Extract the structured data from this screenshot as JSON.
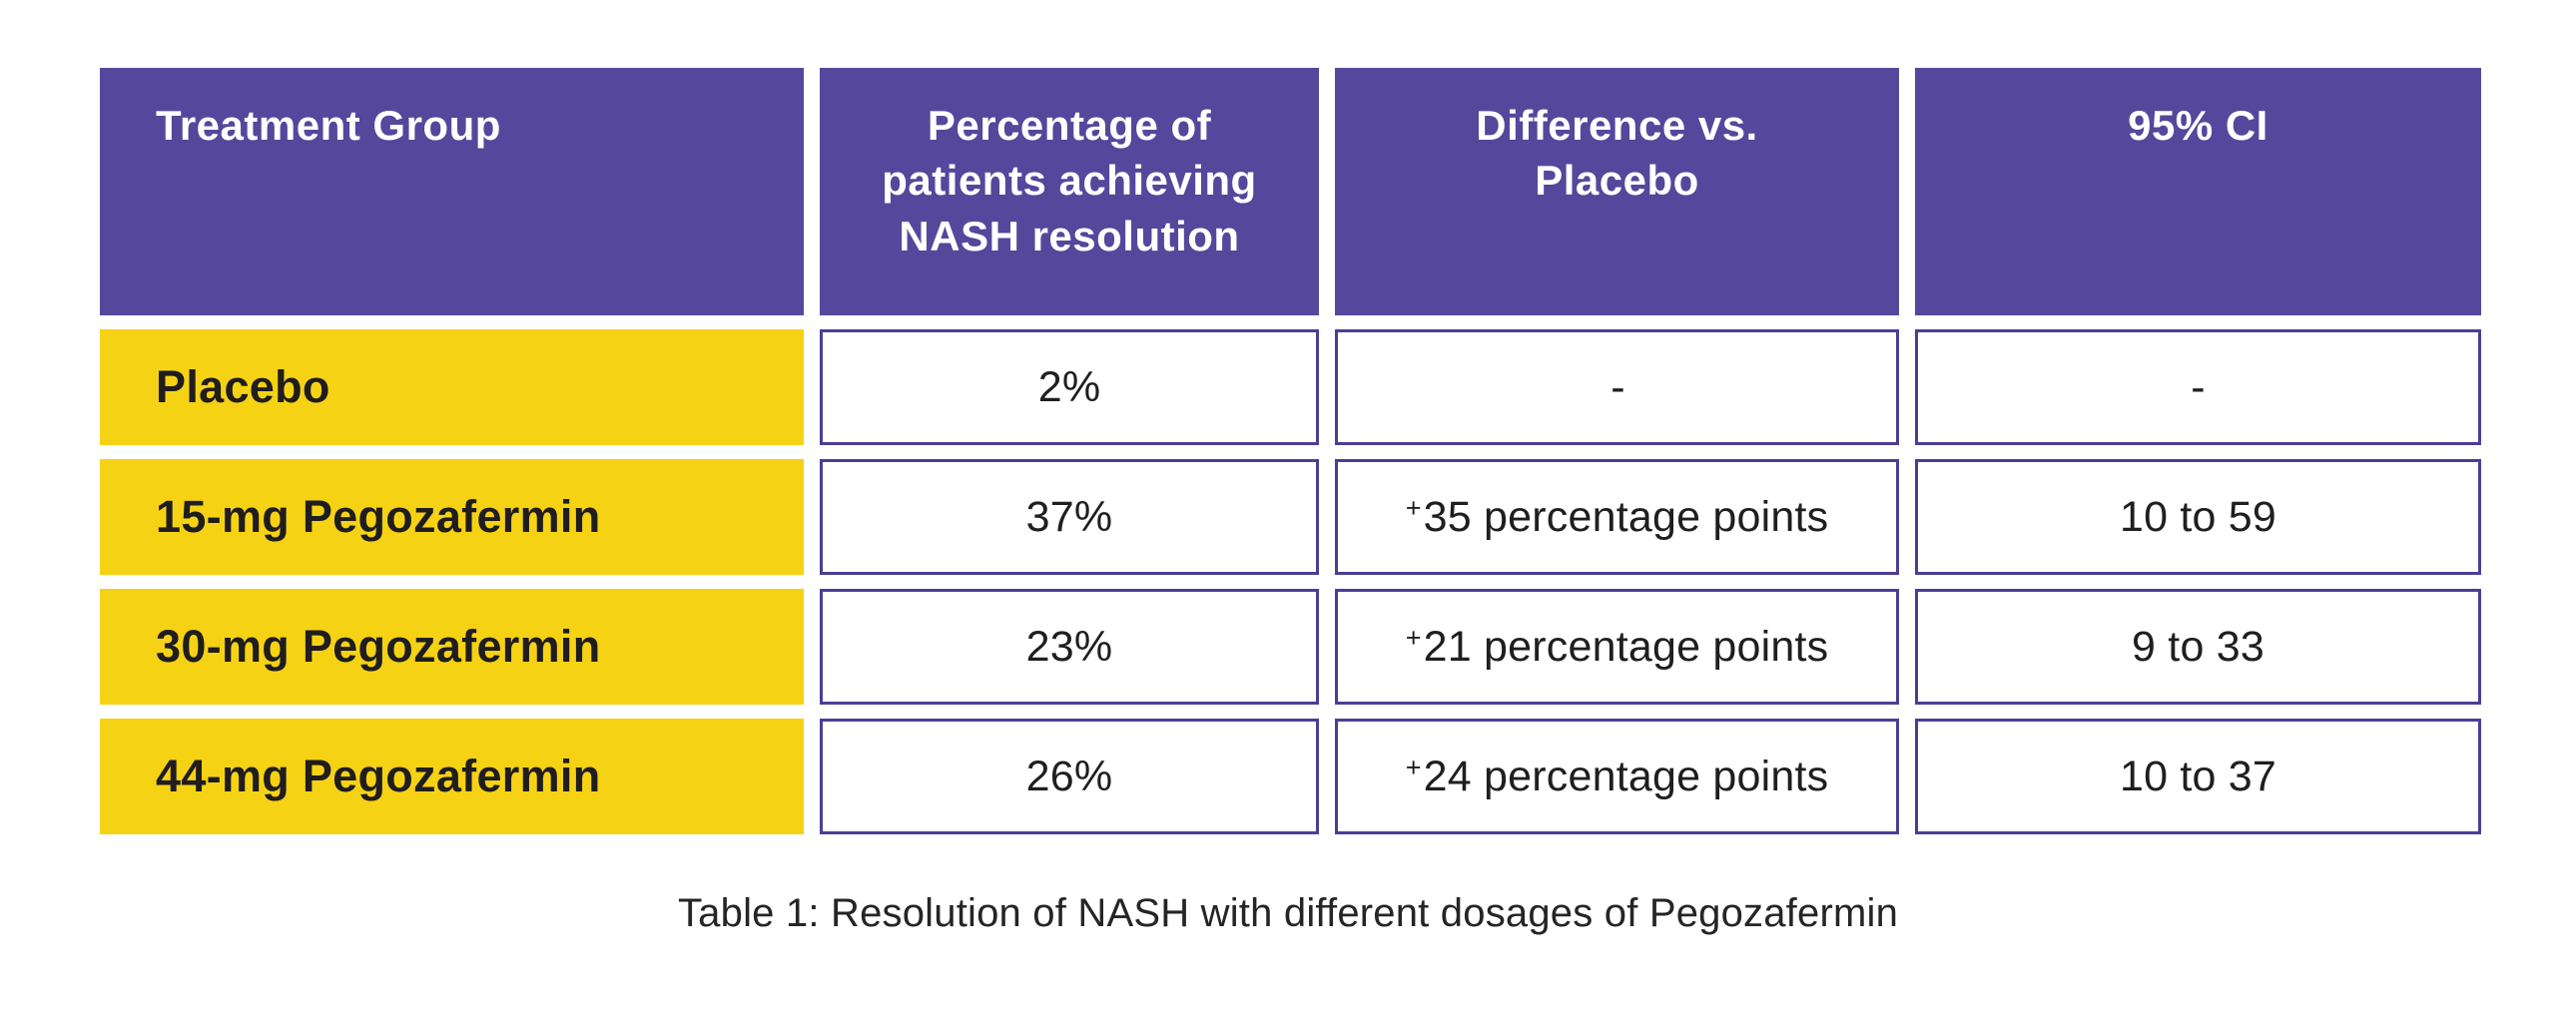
{
  "table": {
    "headers": [
      {
        "label": "Treatment Group"
      },
      {
        "label": "Percentage of\npatients achieving\nNASH resolution"
      },
      {
        "label": "Difference vs.\nPlacebo"
      },
      {
        "label": "95% CI"
      }
    ],
    "rows": [
      {
        "group": "Placebo",
        "pct": "2%",
        "diff_plus": "",
        "diff_value": "-",
        "ci": "-"
      },
      {
        "group": "15-mg Pegozafermin",
        "pct": "37%",
        "diff_plus": "+",
        "diff_value": "35 percentage points",
        "ci": "10 to 59"
      },
      {
        "group": "30-mg Pegozafermin",
        "pct": "23%",
        "diff_plus": "+",
        "diff_value": "21 percentage points",
        "ci": "9 to 33"
      },
      {
        "group": "44-mg Pegozafermin",
        "pct": "26%",
        "diff_plus": "+",
        "diff_value": "24 percentage points",
        "ci": "10 to 37"
      }
    ]
  },
  "caption": "Table 1: Resolution of NASH with different dosages of Pegozafermin",
  "colors": {
    "header_bg": "#55479B",
    "row_label_bg": "#F6D215",
    "cell_border": "#4C3E96",
    "header_text": "#FFFFFF",
    "body_text": "#1F1F1F"
  },
  "chart_data": {
    "type": "table",
    "title": "Table 1: Resolution of NASH with different dosages of Pegozafermin",
    "columns": [
      "Treatment Group",
      "Percentage of patients achieving NASH resolution",
      "Difference vs. Placebo",
      "95% CI"
    ],
    "rows": [
      [
        "Placebo",
        "2%",
        "-",
        "-"
      ],
      [
        "15-mg Pegozafermin",
        "37%",
        "+35 percentage points",
        "10 to 59"
      ],
      [
        "30-mg Pegozafermin",
        "23%",
        "+21 percentage points",
        "9 to 33"
      ],
      [
        "44-mg Pegozafermin",
        "26%",
        "+24 percentage points",
        "10 to 37"
      ]
    ],
    "legend_position": "none",
    "grid": false
  }
}
